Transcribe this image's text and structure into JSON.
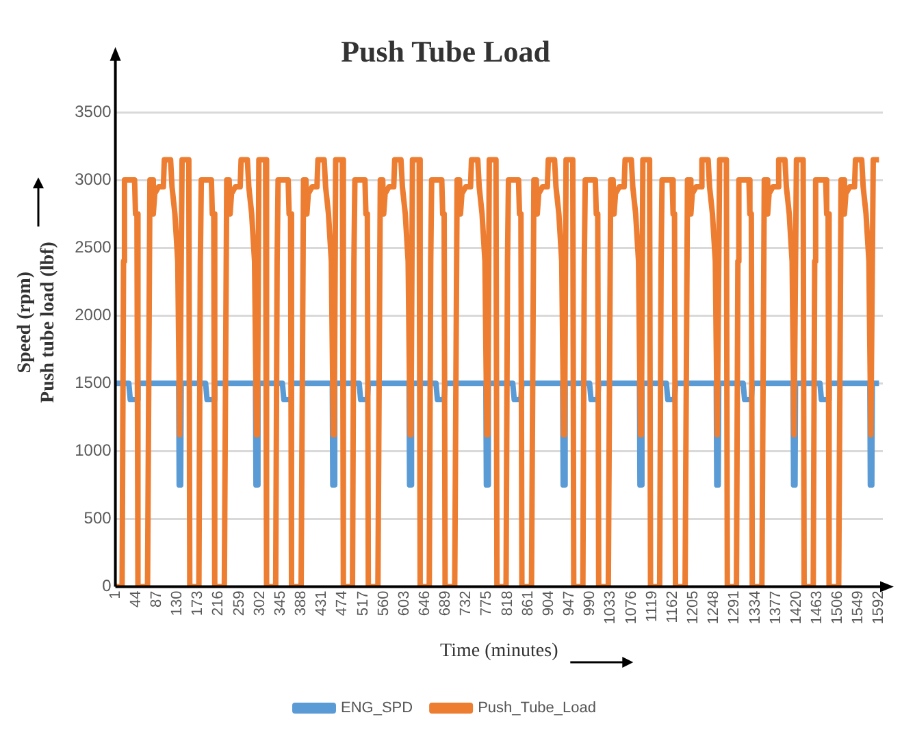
{
  "chart_data": {
    "type": "line",
    "title": "Push Tube Load",
    "xlabel": "Time (minutes)",
    "ylabel": "Speed (rpm)\nPush tube load (lbf)",
    "xlim": [
      1,
      1600
    ],
    "xticks": [
      1,
      44,
      87,
      130,
      173,
      216,
      259,
      302,
      345,
      388,
      431,
      474,
      517,
      560,
      603,
      646,
      689,
      732,
      775,
      818,
      861,
      904,
      947,
      990,
      1033,
      1076,
      1119,
      1162,
      1205,
      1248,
      1291,
      1334,
      1377,
      1420,
      1463,
      1506,
      1549,
      1592
    ],
    "ylim": [
      0,
      3900
    ],
    "yticks": [
      0,
      500,
      1000,
      1500,
      2000,
      2500,
      3000,
      3500
    ],
    "grid": "y",
    "legend": "bottom",
    "marker": "none",
    "line_style": "solid",
    "series": [
      {
        "name": "ENG_SPD",
        "color": "#5b9bd5",
        "x": [
          1,
          29,
          32,
          46,
          48,
          133,
          134,
          137,
          138,
          161,
          189,
          192,
          206,
          208,
          293,
          294,
          297,
          298,
          321,
          349,
          352,
          366,
          368,
          453,
          454,
          457,
          458,
          481,
          509,
          512,
          526,
          528,
          613,
          614,
          617,
          618,
          641,
          669,
          672,
          686,
          688,
          773,
          774,
          777,
          778,
          801,
          829,
          832,
          846,
          848,
          933,
          934,
          937,
          938,
          961,
          989,
          992,
          1006,
          1008,
          1093,
          1094,
          1097,
          1098,
          1121,
          1149,
          1152,
          1166,
          1168,
          1253,
          1254,
          1257,
          1258,
          1281,
          1309,
          1312,
          1326,
          1328,
          1413,
          1414,
          1417,
          1418,
          1441,
          1469,
          1472,
          1486,
          1488,
          1573,
          1574,
          1577,
          1578,
          1592
        ],
        "values": [
          1500,
          1500,
          1380,
          1380,
          1500,
          1500,
          750,
          750,
          1500,
          1500,
          1500,
          1380,
          1380,
          1500,
          1500,
          750,
          750,
          1500,
          1500,
          1500,
          1380,
          1380,
          1500,
          1500,
          750,
          750,
          1500,
          1500,
          1500,
          1380,
          1380,
          1500,
          1500,
          750,
          750,
          1500,
          1500,
          1500,
          1380,
          1380,
          1500,
          1500,
          750,
          750,
          1500,
          1500,
          1500,
          1380,
          1380,
          1500,
          1500,
          750,
          750,
          1500,
          1500,
          1500,
          1380,
          1380,
          1500,
          1500,
          750,
          750,
          1500,
          1500,
          1500,
          1380,
          1380,
          1500,
          1500,
          750,
          750,
          1500,
          1500,
          1500,
          1380,
          1380,
          1500,
          1500,
          750,
          750,
          1500,
          1500,
          1500,
          1380,
          1380,
          1500,
          1500,
          750,
          750,
          1500,
          1500
        ]
      },
      {
        "name": "Push_Tube_Load",
        "color": "#ed7d31",
        "x": [
          1,
          15,
          18,
          20,
          41,
          43,
          46,
          48,
          68,
          73,
          78,
          80,
          83,
          91,
          101,
          103,
          116,
          119,
          125,
          131,
          135,
          137,
          140,
          154,
          156,
          161,
          175,
          178,
          180,
          201,
          203,
          206,
          208,
          228,
          233,
          238,
          240,
          243,
          251,
          261,
          263,
          276,
          279,
          285,
          291,
          295,
          297,
          300,
          314,
          316,
          321,
          335,
          338,
          340,
          361,
          363,
          366,
          368,
          388,
          393,
          398,
          400,
          403,
          411,
          421,
          423,
          436,
          439,
          445,
          451,
          455,
          457,
          460,
          474,
          476,
          481,
          495,
          498,
          500,
          521,
          523,
          526,
          528,
          548,
          553,
          558,
          560,
          563,
          571,
          581,
          583,
          596,
          599,
          605,
          611,
          615,
          617,
          620,
          634,
          636,
          641,
          655,
          658,
          660,
          681,
          683,
          686,
          688,
          708,
          713,
          718,
          720,
          723,
          731,
          741,
          743,
          756,
          759,
          765,
          771,
          775,
          777,
          780,
          794,
          796,
          801,
          815,
          818,
          820,
          841,
          843,
          846,
          848,
          868,
          873,
          878,
          880,
          883,
          891,
          901,
          903,
          916,
          919,
          925,
          931,
          935,
          937,
          940,
          954,
          956,
          961,
          975,
          978,
          980,
          1001,
          1003,
          1006,
          1008,
          1028,
          1033,
          1038,
          1040,
          1043,
          1051,
          1061,
          1063,
          1076,
          1079,
          1085,
          1091,
          1095,
          1097,
          1100,
          1114,
          1116,
          1121,
          1135,
          1138,
          1140,
          1161,
          1163,
          1166,
          1168,
          1188,
          1193,
          1198,
          1200,
          1203,
          1211,
          1221,
          1223,
          1236,
          1239,
          1245,
          1251,
          1255,
          1257,
          1260,
          1274,
          1276,
          1281,
          1295,
          1298,
          1300,
          1321,
          1323,
          1326,
          1328,
          1348,
          1353,
          1358,
          1360,
          1363,
          1371,
          1381,
          1383,
          1396,
          1399,
          1405,
          1411,
          1415,
          1417,
          1420,
          1434,
          1436,
          1441,
          1455,
          1458,
          1460,
          1481,
          1483,
          1486,
          1488,
          1508,
          1513,
          1518,
          1520,
          1523,
          1531,
          1541,
          1543,
          1556,
          1559,
          1565,
          1571,
          1575,
          1577,
          1580,
          1592
        ],
        "values": [
          0,
          0,
          2400,
          3000,
          3000,
          2750,
          2750,
          0,
          0,
          3000,
          3000,
          2750,
          2900,
          2950,
          2950,
          3150,
          3150,
          2950,
          2750,
          2400,
          1120,
          1120,
          3150,
          3150,
          0,
          0,
          0,
          2400,
          3000,
          3000,
          2750,
          2750,
          0,
          0,
          3000,
          3000,
          2750,
          2900,
          2950,
          2950,
          3150,
          3150,
          2950,
          2750,
          2400,
          1120,
          1120,
          3150,
          3150,
          0,
          0,
          0,
          2400,
          3000,
          3000,
          2750,
          2750,
          0,
          0,
          3000,
          3000,
          2750,
          2900,
          2950,
          2950,
          3150,
          3150,
          2950,
          2750,
          2400,
          1120,
          1120,
          3150,
          3150,
          0,
          0,
          0,
          2400,
          3000,
          3000,
          2750,
          2750,
          0,
          0,
          3000,
          3000,
          2750,
          2900,
          2950,
          2950,
          3150,
          3150,
          2950,
          2750,
          2400,
          1120,
          1120,
          3150,
          3150,
          0,
          0,
          0,
          2400,
          3000,
          3000,
          2750,
          2750,
          0,
          0,
          3000,
          3000,
          2750,
          2900,
          2950,
          2950,
          3150,
          3150,
          2950,
          2750,
          2400,
          1120,
          1120,
          3150,
          3150,
          0,
          0,
          0,
          2400,
          3000,
          3000,
          2750,
          2750,
          0,
          0,
          3000,
          3000,
          2750,
          2900,
          2950,
          2950,
          3150,
          3150,
          2950,
          2750,
          2400,
          1120,
          1120,
          3150,
          3150,
          0,
          0,
          0,
          2400,
          3000,
          3000,
          2750,
          2750,
          0,
          0,
          3000,
          3000,
          2750,
          2900,
          2950,
          2950,
          3150,
          3150,
          2950,
          2750,
          2400,
          1120,
          1120,
          3150,
          3150,
          0,
          0,
          0,
          2400,
          3000,
          3000,
          2750,
          2750,
          0,
          0,
          3000,
          3000,
          2750,
          2900,
          2950,
          2950,
          3150,
          3150,
          2950,
          2750,
          2400,
          1120,
          1120,
          3150,
          3150,
          0,
          0,
          0,
          2400,
          3000,
          3000,
          2750,
          2750,
          0,
          0,
          3000,
          3000,
          2750,
          2900,
          2950,
          2950,
          3150,
          3150,
          2950,
          2750,
          2400,
          1120,
          1120,
          3150,
          3150,
          0,
          0,
          0,
          2400,
          3000,
          3000,
          2750,
          2750,
          0,
          0,
          3000,
          3000,
          2750,
          2900,
          2950,
          2950,
          3150,
          3150,
          2950,
          2750,
          2400,
          1120,
          1120,
          3150,
          3150
        ]
      }
    ]
  }
}
